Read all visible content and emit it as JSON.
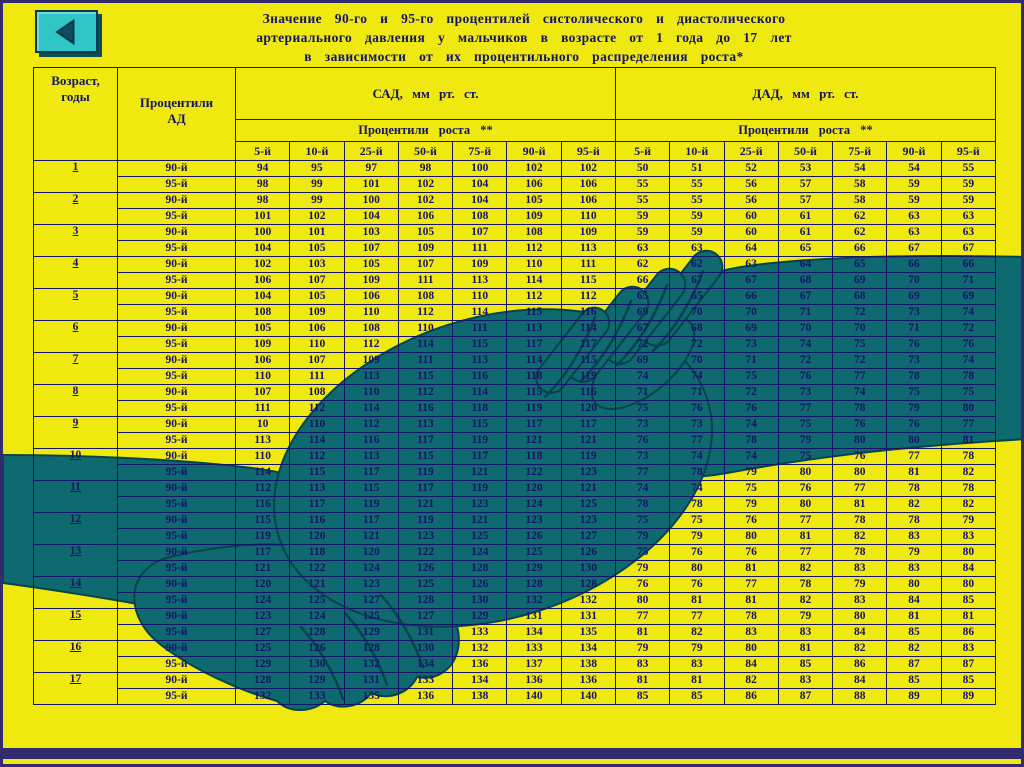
{
  "colors": {
    "background": "#F0E90F",
    "frame": "#322B70",
    "text": "#14146A",
    "table_border": "#14146A",
    "handshake_teal": "#0E6A6E",
    "handshake_dark": "#07434A",
    "button_face": "#30C5C7",
    "button_arrow": "#0D4C5E"
  },
  "back_button": {
    "icon": "left-arrow"
  },
  "title": {
    "line1": "Значение 90-го и 95-го процентилей систолического и диастолического",
    "line2": "артериального давления у мальчиков в возрасте от 1 года до 17 лет",
    "line3": "в зависимости от их процентильного распределения роста*"
  },
  "table": {
    "headers": {
      "age_line1": "Возраст,",
      "age_line2": "годы",
      "bp_line1": "Процентили",
      "bp_line2": "АД",
      "sbp": "САД, мм рт. ст.",
      "dbp": "ДАД, мм рт. ст.",
      "height_percentiles": "Процентили роста **",
      "percentile_cols": [
        "5-й",
        "10-й",
        "25-й",
        "50-й",
        "75-й",
        "90-й",
        "95-й"
      ]
    },
    "groups": [
      {
        "age": "1",
        "rows": [
          {
            "label": "90-й",
            "sad": [
              94,
              95,
              97,
              98,
              100,
              102,
              102
            ],
            "dad": [
              50,
              51,
              52,
              53,
              54,
              54,
              55
            ]
          },
          {
            "label": "95-й",
            "sad": [
              98,
              99,
              101,
              102,
              104,
              106,
              106
            ],
            "dad": [
              55,
              55,
              56,
              57,
              58,
              59,
              59
            ]
          }
        ]
      },
      {
        "age": "2",
        "rows": [
          {
            "label": "90-й",
            "sad": [
              98,
              99,
              100,
              102,
              104,
              105,
              106
            ],
            "dad": [
              55,
              55,
              56,
              57,
              58,
              59,
              59
            ]
          },
          {
            "label": "95-й",
            "sad": [
              101,
              102,
              104,
              106,
              108,
              109,
              110
            ],
            "dad": [
              59,
              59,
              60,
              61,
              62,
              63,
              63
            ]
          }
        ]
      },
      {
        "age": "3",
        "rows": [
          {
            "label": "90-й",
            "sad": [
              100,
              101,
              103,
              105,
              107,
              108,
              109
            ],
            "dad": [
              59,
              59,
              60,
              61,
              62,
              63,
              63
            ]
          },
          {
            "label": "95-й",
            "sad": [
              104,
              105,
              107,
              109,
              111,
              112,
              113
            ],
            "dad": [
              63,
              63,
              64,
              65,
              66,
              67,
              67
            ]
          }
        ]
      },
      {
        "age": "4",
        "rows": [
          {
            "label": "90-й",
            "sad": [
              102,
              103,
              105,
              107,
              109,
              110,
              111
            ],
            "dad": [
              62,
              62,
              63,
              64,
              65,
              66,
              66
            ]
          },
          {
            "label": "95-й",
            "sad": [
              106,
              107,
              109,
              111,
              113,
              114,
              115
            ],
            "dad": [
              66,
              67,
              67,
              68,
              69,
              70,
              71
            ]
          }
        ]
      },
      {
        "age": "5",
        "rows": [
          {
            "label": "90-й",
            "sad": [
              104,
              105,
              106,
              108,
              110,
              112,
              112
            ],
            "dad": [
              65,
              65,
              66,
              67,
              68,
              69,
              69
            ]
          },
          {
            "label": "95-й",
            "sad": [
              108,
              109,
              110,
              112,
              114,
              115,
              116
            ],
            "dad": [
              69,
              70,
              70,
              71,
              72,
              73,
              74
            ]
          }
        ]
      },
      {
        "age": "6",
        "rows": [
          {
            "label": "90-й",
            "sad": [
              105,
              106,
              108,
              110,
              111,
              113,
              114
            ],
            "dad": [
              67,
              68,
              69,
              70,
              70,
              71,
              72
            ]
          },
          {
            "label": "95-й",
            "sad": [
              109,
              110,
              112,
              114,
              115,
              117,
              117
            ],
            "dad": [
              72,
              72,
              73,
              74,
              75,
              76,
              76
            ]
          }
        ]
      },
      {
        "age": "7",
        "rows": [
          {
            "label": "90-й",
            "sad": [
              106,
              107,
              109,
              111,
              113,
              114,
              115
            ],
            "dad": [
              69,
              70,
              71,
              72,
              72,
              73,
              74
            ]
          },
          {
            "label": "95-й",
            "sad": [
              110,
              111,
              113,
              115,
              116,
              118,
              119
            ],
            "dad": [
              74,
              74,
              75,
              76,
              77,
              78,
              78
            ]
          }
        ]
      },
      {
        "age": "8",
        "rows": [
          {
            "label": "90-й",
            "sad": [
              107,
              108,
              110,
              112,
              114,
              115,
              116
            ],
            "dad": [
              71,
              71,
              72,
              73,
              74,
              75,
              75
            ]
          },
          {
            "label": "95-й",
            "sad": [
              111,
              112,
              114,
              116,
              118,
              119,
              120
            ],
            "dad": [
              75,
              76,
              76,
              77,
              78,
              79,
              80
            ]
          }
        ]
      },
      {
        "age": "9",
        "rows": [
          {
            "label": "90-й",
            "sad": [
              "10",
              110,
              112,
              113,
              115,
              117,
              117
            ],
            "dad": [
              73,
              73,
              74,
              75,
              76,
              76,
              77
            ]
          },
          {
            "label": "95-й",
            "sad": [
              113,
              114,
              116,
              117,
              119,
              121,
              121
            ],
            "dad": [
              76,
              77,
              78,
              79,
              80,
              80,
              81
            ]
          }
        ]
      },
      {
        "age": "10",
        "rows": [
          {
            "label": "90-й",
            "sad": [
              110,
              112,
              113,
              115,
              117,
              118,
              119
            ],
            "dad": [
              73,
              74,
              74,
              75,
              76,
              77,
              78
            ]
          },
          {
            "label": "95-й",
            "sad": [
              114,
              115,
              117,
              119,
              121,
              122,
              123
            ],
            "dad": [
              77,
              78,
              79,
              80,
              80,
              81,
              82
            ]
          }
        ]
      },
      {
        "age": "11",
        "rows": [
          {
            "label": "90-й",
            "sad": [
              112,
              113,
              115,
              117,
              119,
              120,
              121
            ],
            "dad": [
              74,
              74,
              75,
              76,
              77,
              78,
              78
            ]
          },
          {
            "label": "95-й",
            "sad": [
              116,
              117,
              119,
              121,
              123,
              124,
              125
            ],
            "dad": [
              78,
              78,
              79,
              80,
              81,
              82,
              82
            ]
          }
        ]
      },
      {
        "age": "12",
        "rows": [
          {
            "label": "90-й",
            "sad": [
              115,
              116,
              117,
              119,
              121,
              123,
              123
            ],
            "dad": [
              75,
              75,
              76,
              77,
              78,
              78,
              79
            ]
          },
          {
            "label": "95-й",
            "sad": [
              119,
              120,
              121,
              123,
              125,
              126,
              127
            ],
            "dad": [
              79,
              79,
              80,
              81,
              82,
              83,
              83
            ]
          }
        ]
      },
      {
        "age": "13",
        "rows": [
          {
            "label": "90-й",
            "sad": [
              117,
              118,
              120,
              122,
              124,
              125,
              126
            ],
            "dad": [
              75,
              76,
              76,
              77,
              78,
              79,
              80
            ]
          },
          {
            "label": "95-й",
            "sad": [
              121,
              122,
              124,
              126,
              128,
              129,
              130
            ],
            "dad": [
              79,
              80,
              81,
              82,
              83,
              83,
              84
            ]
          }
        ]
      },
      {
        "age": "14",
        "rows": [
          {
            "label": "90-й",
            "sad": [
              120,
              121,
              123,
              125,
              126,
              128,
              128
            ],
            "dad": [
              76,
              76,
              77,
              78,
              79,
              80,
              80
            ]
          },
          {
            "label": "95-й",
            "sad": [
              124,
              125,
              127,
              128,
              130,
              132,
              132
            ],
            "dad": [
              80,
              81,
              81,
              82,
              83,
              84,
              85
            ]
          }
        ]
      },
      {
        "age": "15",
        "rows": [
          {
            "label": "90-й",
            "sad": [
              123,
              124,
              125,
              127,
              129,
              131,
              131
            ],
            "dad": [
              77,
              77,
              78,
              79,
              80,
              81,
              81
            ]
          },
          {
            "label": "95-й",
            "sad": [
              127,
              128,
              129,
              131,
              133,
              134,
              135
            ],
            "dad": [
              81,
              82,
              83,
              83,
              84,
              85,
              86
            ]
          }
        ]
      },
      {
        "age": "16",
        "rows": [
          {
            "label": "90-й",
            "sad": [
              125,
              126,
              128,
              130,
              132,
              133,
              134
            ],
            "dad": [
              79,
              79,
              80,
              81,
              82,
              82,
              83
            ]
          },
          {
            "label": "95-й",
            "sad": [
              129,
              130,
              132,
              134,
              136,
              137,
              138
            ],
            "dad": [
              83,
              83,
              84,
              85,
              86,
              87,
              87
            ]
          }
        ]
      },
      {
        "age": "17",
        "rows": [
          {
            "label": "90-й",
            "sad": [
              128,
              129,
              131,
              133,
              134,
              136,
              136
            ],
            "dad": [
              81,
              81,
              82,
              83,
              84,
              85,
              85
            ]
          },
          {
            "label": "95-й",
            "sad": [
              132,
              133,
              135,
              136,
              138,
              140,
              140
            ],
            "dad": [
              85,
              85,
              86,
              87,
              88,
              89,
              89
            ]
          }
        ]
      }
    ]
  }
}
